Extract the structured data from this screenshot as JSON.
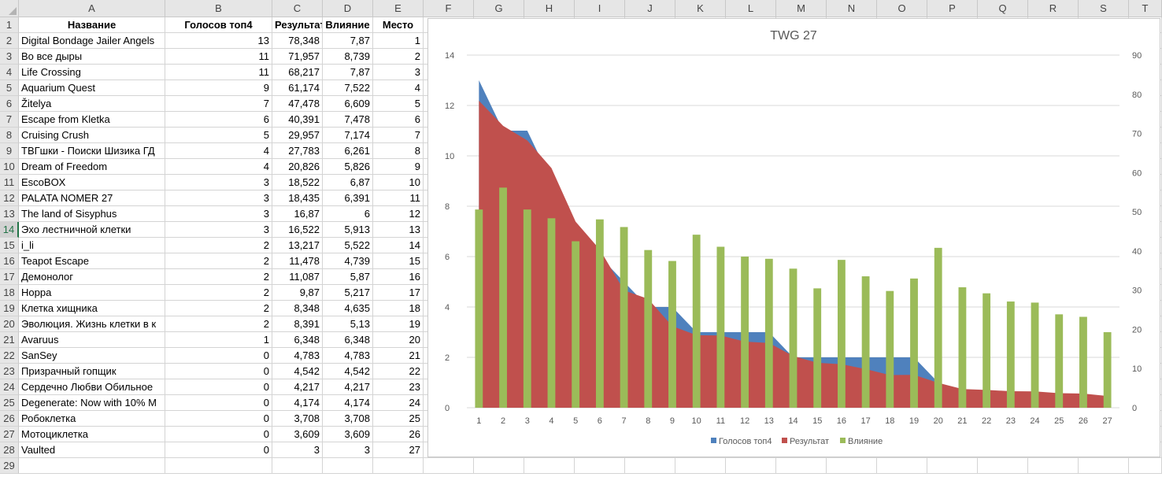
{
  "columns": [
    "A",
    "B",
    "C",
    "D",
    "E",
    "F",
    "G",
    "H",
    "I",
    "J",
    "K",
    "L",
    "M",
    "N",
    "O",
    "P",
    "Q",
    "R",
    "S",
    "T"
  ],
  "header": {
    "name": "Название",
    "votes": "Голосов топ4",
    "result": "Результат",
    "influence": "Влияние",
    "place": "Место"
  },
  "rows": [
    {
      "name": "Digital Bondage Jailer Angels",
      "votes": "13",
      "result": "78,348",
      "influence": "7,87",
      "place": "1"
    },
    {
      "name": "Во все дыры",
      "votes": "11",
      "result": "71,957",
      "influence": "8,739",
      "place": "2"
    },
    {
      "name": "Life Crossing",
      "votes": "11",
      "result": "68,217",
      "influence": "7,87",
      "place": "3"
    },
    {
      "name": "Aquarium Quest",
      "votes": "9",
      "result": "61,174",
      "influence": "7,522",
      "place": "4"
    },
    {
      "name": "Žitelya",
      "votes": "7",
      "result": "47,478",
      "influence": "6,609",
      "place": "5"
    },
    {
      "name": "Escape from Kletka",
      "votes": "6",
      "result": "40,391",
      "influence": "7,478",
      "place": "6"
    },
    {
      "name": "Cruising Crush",
      "votes": "5",
      "result": "29,957",
      "influence": "7,174",
      "place": "7"
    },
    {
      "name": "ТВГшки - Поиски Шизика ГД",
      "votes": "4",
      "result": "27,783",
      "influence": "6,261",
      "place": "8"
    },
    {
      "name": "Dream of Freedom",
      "votes": "4",
      "result": "20,826",
      "influence": "5,826",
      "place": "9"
    },
    {
      "name": "EscoBOX",
      "votes": "3",
      "result": "18,522",
      "influence": "6,87",
      "place": "10"
    },
    {
      "name": "PALATA NOMER 27",
      "votes": "3",
      "result": "18,435",
      "influence": "6,391",
      "place": "11"
    },
    {
      "name": "The land of Sisyphus",
      "votes": "3",
      "result": "16,87",
      "influence": "6",
      "place": "12"
    },
    {
      "name": "Эхо лестничной клетки",
      "votes": "3",
      "result": "16,522",
      "influence": "5,913",
      "place": "13"
    },
    {
      "name": "i_li",
      "votes": "2",
      "result": "13,217",
      "influence": "5,522",
      "place": "14"
    },
    {
      "name": "Teapot Escape",
      "votes": "2",
      "result": "11,478",
      "influence": "4,739",
      "place": "15"
    },
    {
      "name": "Демонолог",
      "votes": "2",
      "result": "11,087",
      "influence": "5,87",
      "place": "16"
    },
    {
      "name": "Норра",
      "votes": "2",
      "result": "9,87",
      "influence": "5,217",
      "place": "17"
    },
    {
      "name": "Клетка хищника",
      "votes": "2",
      "result": "8,348",
      "influence": "4,635",
      "place": "18"
    },
    {
      "name": "Эволюция. Жизнь клетки в к",
      "votes": "2",
      "result": "8,391",
      "influence": "5,13",
      "place": "19"
    },
    {
      "name": "Avaruus",
      "votes": "1",
      "result": "6,348",
      "influence": "6,348",
      "place": "20"
    },
    {
      "name": "SanSey",
      "votes": "0",
      "result": "4,783",
      "influence": "4,783",
      "place": "21"
    },
    {
      "name": "Призрачный гопщик",
      "votes": "0",
      "result": "4,542",
      "influence": "4,542",
      "place": "22"
    },
    {
      "name": "Сердечно Любви Обильное",
      "votes": "0",
      "result": "4,217",
      "influence": "4,217",
      "place": "23"
    },
    {
      "name": "Degenerate: Now with 10% M",
      "votes": "0",
      "result": "4,174",
      "influence": "4,174",
      "place": "24"
    },
    {
      "name": "Робоклетка",
      "votes": "0",
      "result": "3,708",
      "influence": "3,708",
      "place": "25"
    },
    {
      "name": "Мотоциклетка",
      "votes": "0",
      "result": "3,609",
      "influence": "3,609",
      "place": "26"
    },
    {
      "name": "Vaulted",
      "votes": "0",
      "result": "3",
      "influence": "3",
      "place": "27"
    }
  ],
  "colors": {
    "votes": "#4f81bd",
    "result": "#c0504d",
    "influence": "#9bbb59"
  },
  "chart_data": {
    "type": "area",
    "title": "TWG 27",
    "x": [
      1,
      2,
      3,
      4,
      5,
      6,
      7,
      8,
      9,
      10,
      11,
      12,
      13,
      14,
      15,
      16,
      17,
      18,
      19,
      20,
      21,
      22,
      23,
      24,
      25,
      26,
      27
    ],
    "x_ticks": [
      "1",
      "2",
      "3",
      "4",
      "5",
      "6",
      "7",
      "8",
      "9",
      "10",
      "11",
      "12",
      "13",
      "14",
      "15",
      "16",
      "17",
      "18",
      "19",
      "20",
      "21",
      "22",
      "23",
      "24",
      "25",
      "26",
      "27"
    ],
    "y_left_ticks": [
      "0",
      "2",
      "4",
      "6",
      "8",
      "10",
      "12",
      "14"
    ],
    "y_right_ticks": [
      "0",
      "10",
      "20",
      "30",
      "40",
      "50",
      "60",
      "70",
      "80",
      "90"
    ],
    "ylim_left": [
      0,
      14
    ],
    "ylim_right": [
      0,
      90
    ],
    "legend_position": "bottom",
    "series": [
      {
        "name": "Голосов топ4",
        "type": "area",
        "axis": "left",
        "values": [
          13,
          11,
          11,
          9,
          7,
          6,
          5,
          4,
          4,
          3,
          3,
          3,
          3,
          2,
          2,
          2,
          2,
          2,
          2,
          1,
          0,
          0,
          0,
          0,
          0,
          0,
          0
        ]
      },
      {
        "name": "Результат",
        "type": "area",
        "axis": "right",
        "values": [
          78.348,
          71.957,
          68.217,
          61.174,
          47.478,
          40.391,
          29.957,
          27.783,
          20.826,
          18.522,
          18.435,
          16.87,
          16.522,
          13.217,
          11.478,
          11.087,
          9.87,
          8.348,
          8.391,
          6.348,
          4.783,
          4.542,
          4.217,
          4.174,
          3.708,
          3.609,
          3
        ]
      },
      {
        "name": "Влияние",
        "type": "bar",
        "axis": "left",
        "values": [
          7.87,
          8.739,
          7.87,
          7.522,
          6.609,
          7.478,
          7.174,
          6.261,
          5.826,
          6.87,
          6.391,
          6,
          5.913,
          5.522,
          4.739,
          5.87,
          5.217,
          4.635,
          5.13,
          6.348,
          4.783,
          4.542,
          4.217,
          4.174,
          3.708,
          3.609,
          3
        ]
      }
    ]
  }
}
